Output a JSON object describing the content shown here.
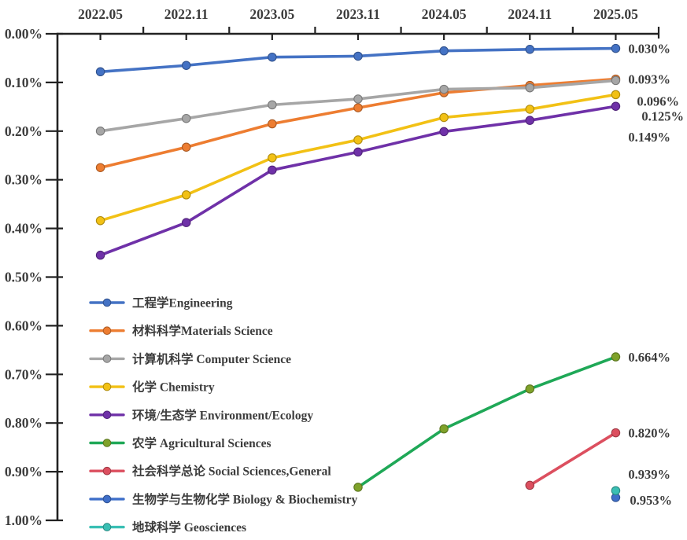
{
  "chart_data": {
    "type": "line",
    "title": "",
    "unit": "%",
    "x_categories": [
      "2022.05",
      "2022.11",
      "2023.05",
      "2023.11",
      "2024.05",
      "2024.11",
      "2025.05"
    ],
    "y_axis": {
      "ticks": [
        "0.00%",
        "0.10%",
        "0.20%",
        "0.30%",
        "0.40%",
        "0.50%",
        "0.60%",
        "0.70%",
        "0.80%",
        "0.90%",
        "1.00%"
      ],
      "min": 0.0,
      "max": 1.0,
      "inverted": true,
      "grid": false
    },
    "legend_position": "middle-left-vertical",
    "colors": {
      "axis": "#222222",
      "tick_label": "#3c3c3c",
      "data_label": "#3c3c3c",
      "legend_text": "#3c3c3c"
    },
    "series": [
      {
        "id": "engineering",
        "legend": "工程学Engineering",
        "color": "#4472C4",
        "marker_color": "#4472C4",
        "values": [
          0.078,
          0.065,
          0.048,
          0.046,
          0.035,
          0.032,
          0.03
        ],
        "end_label": "0.030%",
        "label_offset": [
          0,
          0
        ]
      },
      {
        "id": "materials-science",
        "legend": "材料科学Materials Science",
        "color": "#ED7D31",
        "marker_color": "#ED7D31",
        "values": [
          0.275,
          0.233,
          0.185,
          0.152,
          0.121,
          0.106,
          0.093
        ],
        "end_label": "0.093%",
        "label_offset": [
          0,
          0
        ]
      },
      {
        "id": "computer-science",
        "legend": "计算机科学 Computer Science",
        "color": "#A6A6A6",
        "marker_color": "#A6A6A6",
        "values": [
          0.2,
          0.174,
          0.146,
          0.134,
          0.114,
          0.111,
          0.096
        ],
        "end_label": "0.096%",
        "label_offset": [
          11,
          26
        ]
      },
      {
        "id": "chemistry",
        "legend": "化学 Chemistry",
        "color": "#F2C115",
        "marker_color": "#F2C115",
        "values": [
          0.384,
          0.331,
          0.255,
          0.218,
          0.172,
          0.155,
          0.125
        ],
        "end_label": "0.125%",
        "label_offset": [
          17,
          27
        ]
      },
      {
        "id": "environment-ecology",
        "legend": "环境/生态学 Environment/Ecology",
        "color": "#6F31A8",
        "marker_color": "#6F31A8",
        "values": [
          0.455,
          0.388,
          0.28,
          0.243,
          0.201,
          0.178,
          0.149
        ],
        "end_label": "0.149%",
        "label_offset": [
          0,
          39
        ]
      },
      {
        "id": "agricultural-sciences",
        "legend": "农学 Agricultural Sciences",
        "color": "#1FA857",
        "marker_color": "#7FA22A",
        "values": [
          null,
          null,
          null,
          0.932,
          0.812,
          0.73,
          0.664
        ],
        "end_label": "0.664%",
        "label_offset": [
          0,
          0
        ]
      },
      {
        "id": "social-sciences-general",
        "legend": "社会科学总论 Social Sciences,General",
        "color": "#DC4F5F",
        "marker_color": "#DC4F5F",
        "values": [
          null,
          null,
          null,
          null,
          null,
          0.928,
          0.82
        ],
        "end_label": "0.820%",
        "label_offset": [
          0,
          0
        ]
      },
      {
        "id": "biology-biochemistry",
        "legend": "生物学与生物化学 Biology & Biochemistry",
        "color": "#3F6FC9",
        "marker_color": "#3F6FC9",
        "values": [
          null,
          null,
          null,
          null,
          null,
          null,
          0.953
        ],
        "end_label": "0.953%",
        "label_offset": [
          2,
          3
        ]
      },
      {
        "id": "geosciences",
        "legend": "地球科学 Geosciences",
        "color": "#3ABFB4",
        "marker_color": "#3ABFB4",
        "values": [
          null,
          null,
          null,
          null,
          null,
          null,
          0.939
        ],
        "end_label": "0.939%",
        "label_offset": [
          0,
          -21
        ]
      }
    ]
  }
}
